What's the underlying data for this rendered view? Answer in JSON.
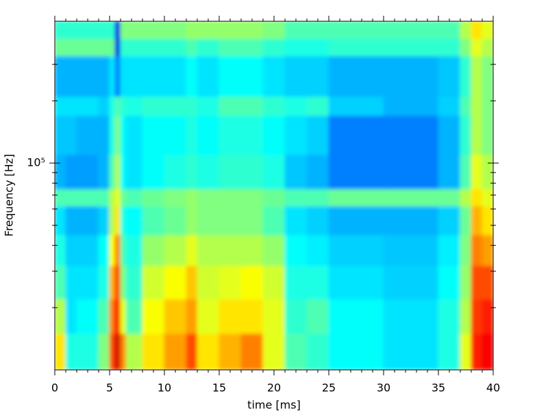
{
  "chart_data": {
    "type": "spectrogram",
    "xlabel": "time [ms]",
    "ylabel": "Frequency [Hz]",
    "xlim": [
      0,
      40
    ],
    "xticks": [
      0,
      5,
      10,
      15,
      20,
      25,
      30,
      35,
      40
    ],
    "xminor_ticks": [
      1,
      2,
      3,
      4,
      6,
      7,
      8,
      9,
      11,
      12,
      13,
      14,
      16,
      17,
      18,
      19,
      21,
      22,
      23,
      24,
      26,
      27,
      28,
      29,
      31,
      32,
      33,
      34,
      36,
      37,
      38,
      39
    ],
    "ylim": [
      10000,
      485000
    ],
    "log_y": true,
    "yticks": [
      {
        "value": 100000,
        "label": "10⁵"
      }
    ],
    "yminor_ticks": [
      20000,
      30000,
      40000,
      50000,
      60000,
      70000,
      80000,
      90000,
      200000,
      300000
    ],
    "colormap": "jet",
    "xbins": [
      0,
      1,
      2,
      4,
      5,
      5.5,
      6,
      6.5,
      8,
      10,
      12,
      13,
      15,
      17,
      19,
      21,
      23,
      25,
      30,
      35,
      37,
      38,
      39,
      40
    ],
    "ybins": [
      10000,
      15000,
      22000,
      32000,
      45000,
      62000,
      75000,
      110000,
      170000,
      210000,
      330000,
      400000,
      485000
    ],
    "z": [
      [
        0.65,
        0.4,
        0.4,
        0.5,
        0.8,
        0.92,
        0.75,
        0.55,
        0.65,
        0.72,
        0.8,
        0.65,
        0.7,
        0.75,
        0.6,
        0.45,
        0.42,
        0.38,
        0.35,
        0.4,
        0.6,
        0.85,
        0.88
      ],
      [
        0.55,
        0.35,
        0.38,
        0.45,
        0.75,
        0.88,
        0.6,
        0.45,
        0.62,
        0.68,
        0.72,
        0.6,
        0.65,
        0.65,
        0.6,
        0.42,
        0.45,
        0.38,
        0.35,
        0.4,
        0.55,
        0.82,
        0.85
      ],
      [
        0.45,
        0.35,
        0.35,
        0.4,
        0.7,
        0.82,
        0.5,
        0.42,
        0.58,
        0.62,
        0.68,
        0.58,
        0.6,
        0.62,
        0.58,
        0.4,
        0.4,
        0.35,
        0.33,
        0.38,
        0.52,
        0.8,
        0.8
      ],
      [
        0.4,
        0.33,
        0.33,
        0.38,
        0.62,
        0.75,
        0.45,
        0.4,
        0.52,
        0.55,
        0.6,
        0.55,
        0.55,
        0.55,
        0.52,
        0.38,
        0.36,
        0.33,
        0.32,
        0.36,
        0.5,
        0.75,
        0.72
      ],
      [
        0.35,
        0.3,
        0.3,
        0.33,
        0.55,
        0.65,
        0.4,
        0.38,
        0.45,
        0.48,
        0.52,
        0.5,
        0.5,
        0.5,
        0.45,
        0.35,
        0.33,
        0.3,
        0.3,
        0.33,
        0.48,
        0.7,
        0.65
      ],
      [
        0.45,
        0.45,
        0.45,
        0.45,
        0.55,
        0.6,
        0.48,
        0.45,
        0.48,
        0.5,
        0.52,
        0.5,
        0.5,
        0.5,
        0.48,
        0.45,
        0.45,
        0.48,
        0.48,
        0.48,
        0.55,
        0.65,
        0.6
      ],
      [
        0.3,
        0.28,
        0.28,
        0.3,
        0.45,
        0.55,
        0.38,
        0.35,
        0.38,
        0.4,
        0.42,
        0.4,
        0.42,
        0.42,
        0.4,
        0.32,
        0.3,
        0.25,
        0.25,
        0.3,
        0.45,
        0.6,
        0.55
      ],
      [
        0.32,
        0.32,
        0.3,
        0.3,
        0.4,
        0.5,
        0.38,
        0.35,
        0.38,
        0.38,
        0.4,
        0.38,
        0.4,
        0.4,
        0.38,
        0.35,
        0.33,
        0.25,
        0.25,
        0.3,
        0.42,
        0.55,
        0.5
      ],
      [
        0.35,
        0.35,
        0.35,
        0.33,
        0.4,
        0.45,
        0.42,
        0.4,
        0.42,
        0.42,
        0.42,
        0.4,
        0.45,
        0.45,
        0.42,
        0.4,
        0.42,
        0.33,
        0.3,
        0.33,
        0.45,
        0.55,
        0.5
      ],
      [
        0.3,
        0.3,
        0.3,
        0.3,
        0.35,
        0.25,
        0.35,
        0.35,
        0.35,
        0.35,
        0.38,
        0.35,
        0.38,
        0.38,
        0.35,
        0.33,
        0.33,
        0.3,
        0.3,
        0.32,
        0.42,
        0.55,
        0.5
      ],
      [
        0.48,
        0.48,
        0.48,
        0.48,
        0.48,
        0.1,
        0.42,
        0.42,
        0.42,
        0.42,
        0.45,
        0.42,
        0.45,
        0.45,
        0.42,
        0.4,
        0.4,
        0.42,
        0.42,
        0.42,
        0.5,
        0.6,
        0.55
      ],
      [
        0.42,
        0.42,
        0.42,
        0.42,
        0.42,
        0.1,
        0.5,
        0.5,
        0.5,
        0.5,
        0.52,
        0.52,
        0.52,
        0.52,
        0.5,
        0.45,
        0.45,
        0.45,
        0.45,
        0.45,
        0.55,
        0.65,
        0.6
      ]
    ]
  }
}
